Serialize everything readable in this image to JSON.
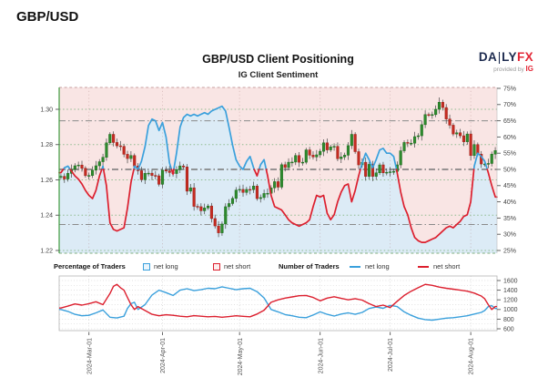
{
  "page_title": "GBP/USD",
  "header": {
    "title": "GBP/USD Client Positioning",
    "subtitle": "IG Client Sentiment"
  },
  "logo": {
    "part1": "DA",
    "bar": "|",
    "part2": "LY",
    "part3": "FX",
    "provided_by": "provided by",
    "ig": "IG"
  },
  "legend": {
    "pct_traders": "Percentage of Traders",
    "num_traders": "Number of Traders",
    "net_long": "net long",
    "net_short": "net short"
  },
  "colors": {
    "net_long_line": "#3aa0dc",
    "net_short_line": "#dc1f2e",
    "long_area": "#dcebf6",
    "short_area": "#f9e5e4",
    "candle_up": "#2e8b2e",
    "candle_up_edge": "#1d6b1d",
    "candle_down": "#c62b21",
    "candle_down_edge": "#9c1f17",
    "grid_green": "#8fbc8f",
    "grid_gray": "#8a8a8a",
    "axis_text": "#444",
    "spine_green": "#3f9b3f",
    "logo_navy": "#1d2b4f",
    "logo_red": "#e32636"
  },
  "chart_data": [
    {
      "type": "candlestick+area",
      "title": "GBP/USD Client Positioning",
      "subtitle": "IG Client Sentiment",
      "price_axis": {
        "ticks": [
          {
            "label": "1.30",
            "v": 1.3
          },
          {
            "label": "1.28",
            "v": 1.28
          },
          {
            "label": "1.26",
            "v": 1.26
          },
          {
            "label": "1.24",
            "v": 1.24
          },
          {
            "label": "1.22",
            "v": 1.22
          }
        ]
      },
      "pct_axis": {
        "ticks": [
          {
            "label": "75%",
            "v": 75
          },
          {
            "label": "70%",
            "v": 70
          },
          {
            "label": "65%",
            "v": 65
          },
          {
            "label": "60%",
            "v": 60
          },
          {
            "label": "55%",
            "v": 55
          },
          {
            "label": "50%",
            "v": 50
          },
          {
            "label": "45%",
            "v": 45
          },
          {
            "label": "40%",
            "v": 40
          },
          {
            "label": "35%",
            "v": 35
          },
          {
            "label": "30%",
            "v": 30
          },
          {
            "label": "25%",
            "v": 25
          }
        ],
        "range": [
          25,
          75
        ],
        "ref_lines": [
          65,
          50,
          33
        ]
      },
      "months": [
        {
          "label": "2024-Mar-01",
          "i": 8
        },
        {
          "label": "2024-Apr-01",
          "i": 29
        },
        {
          "label": "2024-May-01",
          "i": 51
        },
        {
          "label": "2024-Jun-01",
          "i": 74
        },
        {
          "label": "2024-Jul-01",
          "i": 94
        },
        {
          "label": "2024-Aug-01",
          "i": 117
        }
      ],
      "open_first": 1.2615,
      "closes": [
        1.262,
        1.2605,
        1.2637,
        1.266,
        1.268,
        1.2684,
        1.2666,
        1.2624,
        1.2625,
        1.2655,
        1.268,
        1.2703,
        1.2728,
        1.281,
        1.2858,
        1.2812,
        1.2793,
        1.279,
        1.2745,
        1.2721,
        1.2738,
        1.2678,
        1.2652,
        1.2601,
        1.2637,
        1.2638,
        1.2625,
        1.2623,
        1.2575,
        1.2655,
        1.2651,
        1.2642,
        1.2636,
        1.2658,
        1.2679,
        1.2673,
        1.2536,
        1.2555,
        1.245,
        1.2448,
        1.2425,
        1.2441,
        1.2452,
        1.2381,
        1.2339,
        1.23,
        1.235,
        1.2448,
        1.2466,
        1.2495,
        1.2542,
        1.2546,
        1.2529,
        1.2546,
        1.2545,
        1.2565,
        1.2494,
        1.25,
        1.2523,
        1.2524,
        1.2555,
        1.259,
        1.2559,
        1.2686,
        1.267,
        1.27,
        1.2701,
        1.2738,
        1.27,
        1.27,
        1.277,
        1.274,
        1.273,
        1.2742,
        1.2762,
        1.281,
        1.277,
        1.2787,
        1.279,
        1.272,
        1.273,
        1.274,
        1.2794,
        1.2858,
        1.276,
        1.2685,
        1.27,
        1.262,
        1.2688,
        1.262,
        1.264,
        1.2685,
        1.264,
        1.2643,
        1.2646,
        1.2648,
        1.2685,
        1.2765,
        1.2812,
        1.2808,
        1.2808,
        1.2845,
        1.285,
        1.2913,
        1.297,
        1.2968,
        1.297,
        1.3,
        1.304,
        1.301,
        1.2945,
        1.291,
        1.286,
        1.2867,
        1.285,
        1.2816,
        1.286,
        1.2738,
        1.28,
        1.2746,
        1.269,
        1.269,
        1.2693,
        1.2746,
        1.2766
      ],
      "net_long_pct": [
        49,
        50.5,
        51,
        49.5,
        48,
        47,
        45.5,
        43.5,
        42,
        41,
        43.5,
        48,
        51,
        45,
        33.5,
        31.5,
        31,
        31.5,
        32,
        38,
        46,
        51,
        50,
        52.5,
        57,
        63.5,
        65.5,
        65,
        62,
        64.5,
        60,
        52,
        48.5,
        55,
        63,
        66,
        67,
        66.5,
        67,
        66.5,
        67,
        67.5,
        67,
        68,
        68.5,
        69,
        69.5,
        68,
        63,
        57.5,
        53,
        51,
        50,
        52.5,
        54,
        50.5,
        48,
        51.5,
        53,
        48,
        42,
        38.5,
        38,
        37.5,
        36,
        34.5,
        33.5,
        33,
        32.5,
        33,
        33.5,
        34.5,
        38.5,
        42,
        41.5,
        42,
        36.5,
        34.5,
        36,
        40,
        43,
        45,
        45.5,
        40,
        43.5,
        48,
        52,
        55,
        53,
        50.5,
        53,
        56,
        56.5,
        55,
        55,
        54,
        49,
        43,
        38.5,
        36,
        32,
        29,
        28,
        27.5,
        27.5,
        28,
        28.5,
        29,
        30,
        31,
        32,
        32.5,
        32,
        33,
        34,
        35.5,
        36,
        40,
        51,
        55,
        54,
        52.5,
        49,
        45,
        41.5
      ]
    },
    {
      "type": "line",
      "y_axis": {
        "ticks": [
          {
            "label": "1600",
            "v": 1600
          },
          {
            "label": "1400",
            "v": 1400
          },
          {
            "label": "1200",
            "v": 1200
          },
          {
            "label": "1000",
            "v": 1000
          },
          {
            "label": "800",
            "v": 800
          },
          {
            "label": "600",
            "v": 600
          }
        ],
        "minor_step": 100
      },
      "series": [
        {
          "name": "net long",
          "color": "#3aa0dc",
          "anchors": [
            [
              0,
              1000
            ],
            [
              2,
              960
            ],
            [
              4,
              900
            ],
            [
              6,
              870
            ],
            [
              8,
              880
            ],
            [
              10,
              930
            ],
            [
              12,
              990
            ],
            [
              14,
              840
            ],
            [
              16,
              825
            ],
            [
              18,
              860
            ],
            [
              19,
              1020
            ],
            [
              20,
              1120
            ],
            [
              21,
              1150
            ],
            [
              22,
              1000
            ],
            [
              24,
              1100
            ],
            [
              26,
              1300
            ],
            [
              28,
              1400
            ],
            [
              30,
              1350
            ],
            [
              32,
              1290
            ],
            [
              34,
              1400
            ],
            [
              36,
              1430
            ],
            [
              38,
              1390
            ],
            [
              40,
              1410
            ],
            [
              42,
              1440
            ],
            [
              44,
              1430
            ],
            [
              46,
              1470
            ],
            [
              48,
              1440
            ],
            [
              50,
              1410
            ],
            [
              52,
              1430
            ],
            [
              54,
              1440
            ],
            [
              56,
              1370
            ],
            [
              58,
              1240
            ],
            [
              60,
              1000
            ],
            [
              62,
              950
            ],
            [
              64,
              895
            ],
            [
              66,
              870
            ],
            [
              68,
              840
            ],
            [
              70,
              830
            ],
            [
              72,
              885
            ],
            [
              74,
              950
            ],
            [
              76,
              900
            ],
            [
              78,
              865
            ],
            [
              80,
              905
            ],
            [
              82,
              930
            ],
            [
              84,
              900
            ],
            [
              86,
              940
            ],
            [
              88,
              1020
            ],
            [
              90,
              1050
            ],
            [
              92,
              1025
            ],
            [
              94,
              1085
            ],
            [
              96,
              1060
            ],
            [
              98,
              950
            ],
            [
              100,
              880
            ],
            [
              102,
              820
            ],
            [
              104,
              790
            ],
            [
              106,
              780
            ],
            [
              108,
              800
            ],
            [
              110,
              820
            ],
            [
              112,
              830
            ],
            [
              114,
              850
            ],
            [
              116,
              870
            ],
            [
              118,
              905
            ],
            [
              120,
              940
            ],
            [
              121,
              980
            ],
            [
              122,
              1060
            ],
            [
              123,
              1080
            ],
            [
              124,
              1020
            ]
          ]
        },
        {
          "name": "net short",
          "color": "#dc1f2e",
          "anchors": [
            [
              0,
              1030
            ],
            [
              2,
              1070
            ],
            [
              4,
              1115
            ],
            [
              6,
              1090
            ],
            [
              8,
              1120
            ],
            [
              10,
              1160
            ],
            [
              12,
              1100
            ],
            [
              14,
              1330
            ],
            [
              15,
              1480
            ],
            [
              16,
              1520
            ],
            [
              17,
              1450
            ],
            [
              18,
              1400
            ],
            [
              19,
              1250
            ],
            [
              20,
              1100
            ],
            [
              21,
              1000
            ],
            [
              22,
              1060
            ],
            [
              24,
              980
            ],
            [
              26,
              900
            ],
            [
              28,
              870
            ],
            [
              30,
              890
            ],
            [
              32,
              880
            ],
            [
              34,
              860
            ],
            [
              36,
              850
            ],
            [
              38,
              872
            ],
            [
              40,
              860
            ],
            [
              42,
              850
            ],
            [
              44,
              856
            ],
            [
              46,
              840
            ],
            [
              48,
              852
            ],
            [
              50,
              870
            ],
            [
              52,
              858
            ],
            [
              54,
              850
            ],
            [
              56,
              905
            ],
            [
              58,
              985
            ],
            [
              60,
              1150
            ],
            [
              62,
              1200
            ],
            [
              64,
              1235
            ],
            [
              66,
              1260
            ],
            [
              68,
              1285
            ],
            [
              70,
              1290
            ],
            [
              72,
              1250
            ],
            [
              74,
              1180
            ],
            [
              76,
              1235
            ],
            [
              78,
              1265
            ],
            [
              80,
              1230
            ],
            [
              82,
              1200
            ],
            [
              84,
              1225
            ],
            [
              86,
              1195
            ],
            [
              88,
              1120
            ],
            [
              90,
              1060
            ],
            [
              92,
              1090
            ],
            [
              94,
              1040
            ],
            [
              96,
              1170
            ],
            [
              98,
              1290
            ],
            [
              100,
              1380
            ],
            [
              102,
              1450
            ],
            [
              104,
              1520
            ],
            [
              106,
              1500
            ],
            [
              108,
              1465
            ],
            [
              110,
              1440
            ],
            [
              112,
              1420
            ],
            [
              114,
              1400
            ],
            [
              116,
              1380
            ],
            [
              118,
              1340
            ],
            [
              120,
              1280
            ],
            [
              121,
              1220
            ],
            [
              122,
              1100
            ],
            [
              123,
              1000
            ],
            [
              124,
              1060
            ]
          ]
        }
      ]
    }
  ]
}
